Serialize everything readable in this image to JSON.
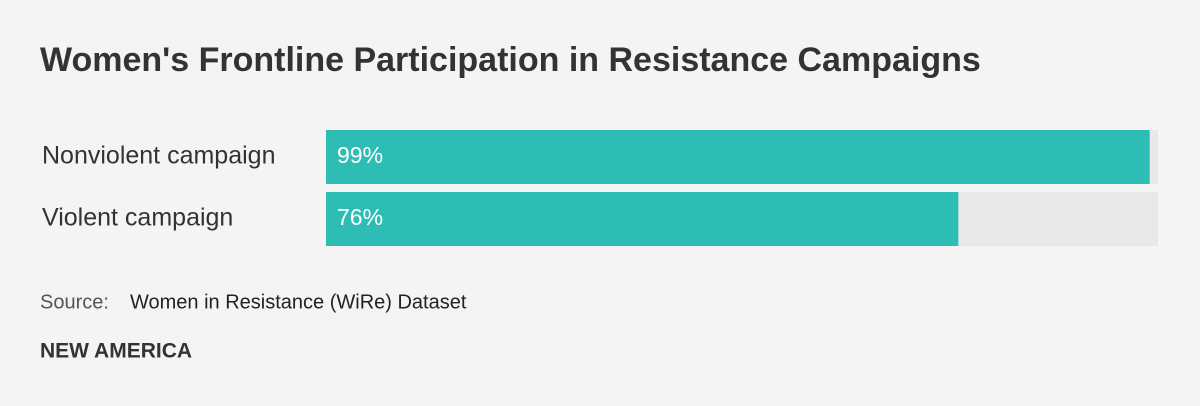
{
  "chart_data": {
    "type": "bar",
    "orientation": "horizontal",
    "title": "Women's Frontline Participation in Resistance Campaigns",
    "categories": [
      "Nonviolent campaign",
      "Violent campaign"
    ],
    "values": [
      99,
      76
    ],
    "value_labels": [
      "99%",
      "76%"
    ],
    "color": "#2ebdb4",
    "track_color": "#e9e9e9",
    "xlim": [
      0,
      100
    ],
    "source_label": "Source:",
    "source": "Women in Resistance (WiRe) Dataset",
    "brand": "NEW AMERICA"
  }
}
